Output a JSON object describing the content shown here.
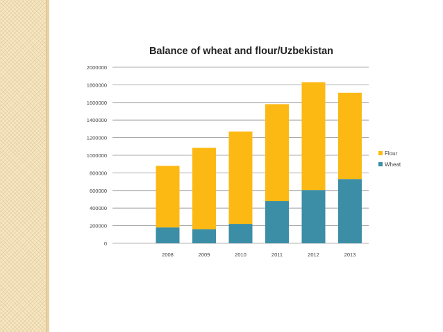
{
  "chart_data": {
    "type": "bar",
    "stacked": true,
    "title": "Balance of wheat and flour/Uzbekistan",
    "xlabel": "",
    "ylabel": "",
    "categories": [
      "2008",
      "2009",
      "2010",
      "2011",
      "2012",
      "2013"
    ],
    "series": [
      {
        "name": "Wheat",
        "color": "#3b8ea5",
        "values": [
          180000,
          160000,
          220000,
          480000,
          605000,
          730000
        ]
      },
      {
        "name": "Flour",
        "color": "#fdb913",
        "values": [
          700000,
          925000,
          1050000,
          1100000,
          1225000,
          980000
        ]
      }
    ],
    "ylim": [
      0,
      2000000
    ],
    "yticks": [
      "0",
      "200000",
      "400000",
      "600000",
      "800000",
      "1000000",
      "1200000",
      "1400000",
      "1600000",
      "1800000",
      "2000000"
    ],
    "legend_position": "right",
    "grid": true
  }
}
